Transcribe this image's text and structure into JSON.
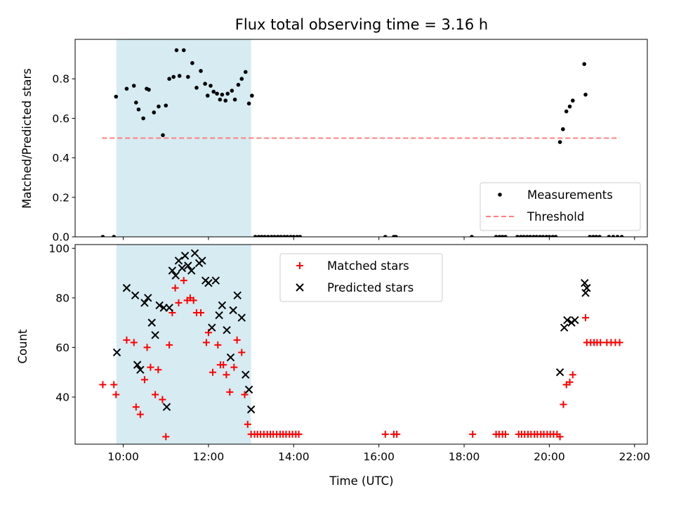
{
  "chart_data": {
    "type": "scatter",
    "title": "Flux total observing time = 3.16 h",
    "xlabel": "Time (UTC)",
    "x_ticks": [
      "10:00",
      "12:00",
      "14:00",
      "16:00",
      "18:00",
      "20:00",
      "22:00"
    ],
    "x_tick_hours": [
      10,
      12,
      14,
      16,
      18,
      20,
      22
    ],
    "xlim": [
      8.87,
      22.3
    ],
    "shaded_span": [
      9.84,
      13.0
    ],
    "colors": {
      "shade": "#add8e6",
      "measurements": "#000000",
      "threshold": "#ff7f7f",
      "matched": "#ff0000",
      "predicted": "#000000"
    },
    "panels": [
      {
        "ylabel": "Matched/Predicted stars",
        "ylim": [
          0,
          1.0
        ],
        "y_ticks": [
          "0.0",
          "0.2",
          "0.4",
          "0.6",
          "0.8"
        ],
        "y_tick_values": [
          0.0,
          0.2,
          0.4,
          0.6,
          0.8
        ],
        "legend_position": "lower-right",
        "series": [
          {
            "name": "Measurements",
            "marker": "dot",
            "points": [
              [
                9.52,
                0.0
              ],
              [
                9.78,
                0.0
              ],
              [
                9.83,
                0.71
              ],
              [
                10.08,
                0.75
              ],
              [
                10.25,
                0.765
              ],
              [
                10.3,
                0.68
              ],
              [
                10.36,
                0.645
              ],
              [
                10.47,
                0.6
              ],
              [
                10.55,
                0.75
              ],
              [
                10.6,
                0.745
              ],
              [
                10.72,
                0.63
              ],
              [
                10.83,
                0.66
              ],
              [
                10.93,
                0.515
              ],
              [
                11.0,
                0.665
              ],
              [
                11.08,
                0.8
              ],
              [
                11.18,
                0.81
              ],
              [
                11.25,
                0.945
              ],
              [
                11.32,
                0.815
              ],
              [
                11.42,
                0.945
              ],
              [
                11.52,
                0.81
              ],
              [
                11.62,
                0.88
              ],
              [
                11.72,
                0.755
              ],
              [
                11.82,
                0.84
              ],
              [
                11.92,
                0.775
              ],
              [
                11.98,
                0.715
              ],
              [
                12.05,
                0.765
              ],
              [
                12.12,
                0.735
              ],
              [
                12.2,
                0.725
              ],
              [
                12.27,
                0.695
              ],
              [
                12.32,
                0.72
              ],
              [
                12.4,
                0.69
              ],
              [
                12.45,
                0.725
              ],
              [
                12.55,
                0.74
              ],
              [
                12.62,
                0.695
              ],
              [
                12.7,
                0.77
              ],
              [
                12.78,
                0.8
              ],
              [
                12.87,
                0.835
              ],
              [
                12.95,
                0.675
              ],
              [
                13.02,
                0.715
              ],
              [
                13.1,
                0.0
              ],
              [
                13.18,
                0.0
              ],
              [
                13.25,
                0.0
              ],
              [
                13.32,
                0.0
              ],
              [
                13.4,
                0.0
              ],
              [
                13.48,
                0.0
              ],
              [
                13.55,
                0.0
              ],
              [
                13.63,
                0.0
              ],
              [
                13.7,
                0.0
              ],
              [
                13.78,
                0.0
              ],
              [
                13.85,
                0.0
              ],
              [
                13.93,
                0.0
              ],
              [
                14.0,
                0.0
              ],
              [
                14.08,
                0.0
              ],
              [
                14.15,
                0.0
              ],
              [
                16.15,
                0.0
              ],
              [
                16.35,
                0.0
              ],
              [
                16.4,
                0.0
              ],
              [
                18.18,
                0.0
              ],
              [
                18.75,
                0.0
              ],
              [
                18.83,
                0.0
              ],
              [
                18.9,
                0.0
              ],
              [
                18.97,
                0.0
              ],
              [
                19.25,
                0.0
              ],
              [
                19.33,
                0.0
              ],
              [
                19.4,
                0.0
              ],
              [
                19.48,
                0.0
              ],
              [
                19.55,
                0.0
              ],
              [
                19.63,
                0.0
              ],
              [
                19.7,
                0.0
              ],
              [
                19.78,
                0.0
              ],
              [
                19.85,
                0.0
              ],
              [
                19.93,
                0.0
              ],
              [
                20.0,
                0.0
              ],
              [
                20.08,
                0.0
              ],
              [
                20.15,
                0.0
              ],
              [
                20.25,
                0.48
              ],
              [
                20.32,
                0.545
              ],
              [
                20.4,
                0.635
              ],
              [
                20.48,
                0.66
              ],
              [
                20.55,
                0.69
              ],
              [
                20.82,
                0.875
              ],
              [
                20.85,
                0.72
              ],
              [
                20.95,
                0.0
              ],
              [
                21.03,
                0.0
              ],
              [
                21.1,
                0.0
              ],
              [
                21.18,
                0.0
              ],
              [
                21.4,
                0.0
              ],
              [
                21.5,
                0.0
              ],
              [
                21.6,
                0.0
              ],
              [
                21.7,
                0.0
              ]
            ]
          },
          {
            "name": "Threshold",
            "marker": "dashed-line",
            "points": [
              [
                9.5,
                0.5
              ],
              [
                21.65,
                0.5
              ]
            ]
          }
        ]
      },
      {
        "ylabel": "Count",
        "ylim": [
          21,
          101.5
        ],
        "y_ticks": [
          "40",
          "60",
          "80",
          "100"
        ],
        "y_tick_values": [
          40,
          60,
          80,
          100
        ],
        "legend_position": "upper-center",
        "series": [
          {
            "name": "Matched stars",
            "marker": "plus",
            "points": [
              [
                9.52,
                45
              ],
              [
                9.78,
                45
              ],
              [
                9.83,
                41
              ],
              [
                10.08,
                63
              ],
              [
                10.25,
                62
              ],
              [
                10.3,
                36
              ],
              [
                10.4,
                33
              ],
              [
                10.5,
                47
              ],
              [
                10.56,
                60
              ],
              [
                10.64,
                52
              ],
              [
                10.75,
                41
              ],
              [
                10.82,
                51
              ],
              [
                10.92,
                39
              ],
              [
                11.0,
                24
              ],
              [
                11.08,
                61
              ],
              [
                11.15,
                74
              ],
              [
                11.22,
                84
              ],
              [
                11.3,
                78
              ],
              [
                11.42,
                87
              ],
              [
                11.5,
                79
              ],
              [
                11.57,
                80
              ],
              [
                11.65,
                79
              ],
              [
                11.72,
                74
              ],
              [
                11.82,
                74
              ],
              [
                11.95,
                62
              ],
              [
                12.0,
                66
              ],
              [
                12.1,
                50
              ],
              [
                12.22,
                61
              ],
              [
                12.28,
                53
              ],
              [
                12.35,
                53
              ],
              [
                12.42,
                49
              ],
              [
                12.5,
                42
              ],
              [
                12.6,
                52
              ],
              [
                12.67,
                63
              ],
              [
                12.78,
                58
              ],
              [
                12.85,
                41
              ],
              [
                12.92,
                29
              ],
              [
                13.0,
                25
              ],
              [
                13.08,
                25
              ],
              [
                13.15,
                25
              ],
              [
                13.22,
                25
              ],
              [
                13.3,
                25
              ],
              [
                13.38,
                25
              ],
              [
                13.45,
                25
              ],
              [
                13.52,
                25
              ],
              [
                13.6,
                25
              ],
              [
                13.68,
                25
              ],
              [
                13.75,
                25
              ],
              [
                13.82,
                25
              ],
              [
                13.9,
                25
              ],
              [
                13.97,
                25
              ],
              [
                14.05,
                25
              ],
              [
                14.12,
                25
              ],
              [
                16.15,
                25
              ],
              [
                16.35,
                25
              ],
              [
                16.42,
                25
              ],
              [
                18.2,
                25
              ],
              [
                18.75,
                25
              ],
              [
                18.82,
                25
              ],
              [
                18.9,
                25
              ],
              [
                18.97,
                25
              ],
              [
                19.28,
                25
              ],
              [
                19.35,
                25
              ],
              [
                19.42,
                25
              ],
              [
                19.5,
                25
              ],
              [
                19.57,
                25
              ],
              [
                19.65,
                25
              ],
              [
                19.72,
                25
              ],
              [
                19.8,
                25
              ],
              [
                19.87,
                25
              ],
              [
                19.95,
                25
              ],
              [
                20.02,
                25
              ],
              [
                20.1,
                25
              ],
              [
                20.18,
                25
              ],
              [
                20.25,
                24
              ],
              [
                20.33,
                37
              ],
              [
                20.4,
                45
              ],
              [
                20.48,
                46
              ],
              [
                20.55,
                49
              ],
              [
                20.85,
                72
              ],
              [
                20.88,
                62
              ],
              [
                20.97,
                62
              ],
              [
                21.05,
                62
              ],
              [
                21.12,
                62
              ],
              [
                21.2,
                62
              ],
              [
                21.35,
                62
              ],
              [
                21.45,
                62
              ],
              [
                21.55,
                62
              ],
              [
                21.65,
                62
              ]
            ]
          },
          {
            "name": "Predicted stars",
            "marker": "x",
            "points": [
              [
                9.85,
                58
              ],
              [
                10.08,
                84
              ],
              [
                10.28,
                81
              ],
              [
                10.33,
                53
              ],
              [
                10.4,
                51
              ],
              [
                10.5,
                78
              ],
              [
                10.58,
                80
              ],
              [
                10.67,
                70
              ],
              [
                10.75,
                65
              ],
              [
                10.85,
                77
              ],
              [
                10.95,
                76
              ],
              [
                11.02,
                36
              ],
              [
                11.08,
                76
              ],
              [
                11.15,
                91
              ],
              [
                11.23,
                89
              ],
              [
                11.3,
                95
              ],
              [
                11.38,
                92
              ],
              [
                11.45,
                97
              ],
              [
                11.52,
                93
              ],
              [
                11.6,
                91
              ],
              [
                11.68,
                98
              ],
              [
                11.78,
                94
              ],
              [
                11.85,
                95
              ],
              [
                11.93,
                87
              ],
              [
                12.0,
                86
              ],
              [
                12.08,
                68
              ],
              [
                12.17,
                87
              ],
              [
                12.25,
                73
              ],
              [
                12.32,
                77
              ],
              [
                12.43,
                67
              ],
              [
                12.52,
                56
              ],
              [
                12.58,
                75
              ],
              [
                12.68,
                81
              ],
              [
                12.78,
                72
              ],
              [
                12.87,
                49
              ],
              [
                12.95,
                43
              ],
              [
                13.0,
                35
              ],
              [
                20.25,
                50
              ],
              [
                20.35,
                68
              ],
              [
                20.42,
                71
              ],
              [
                20.52,
                70
              ],
              [
                20.6,
                71
              ],
              [
                20.83,
                86
              ],
              [
                20.85,
                82
              ],
              [
                20.88,
                84
              ]
            ]
          }
        ]
      }
    ]
  }
}
